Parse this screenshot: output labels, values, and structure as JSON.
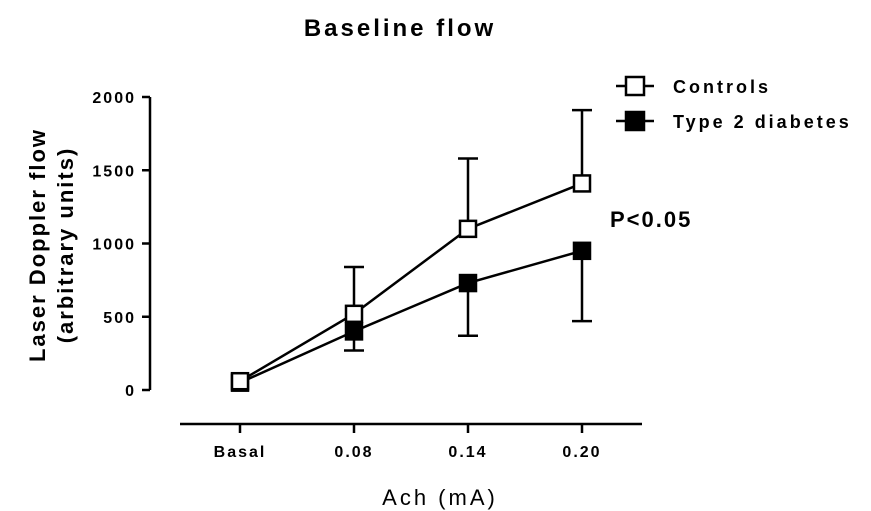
{
  "chart_data": {
    "type": "line",
    "title": "Baseline flow",
    "xlabel": "Ach (mA)",
    "ylabel_line1": "Laser Doppler flow",
    "ylabel_line2": "(arbitrary units)",
    "categories": [
      "Basal",
      "0.08",
      "0.14",
      "0.20"
    ],
    "ylim": [
      0,
      2000
    ],
    "yticks": [
      0,
      500,
      1000,
      1500,
      2000
    ],
    "ytick_labels": [
      "0",
      "500",
      "1000",
      "1500",
      "2000"
    ],
    "grid": false,
    "legend_position": "top-right",
    "series": [
      {
        "name": "Controls",
        "marker": "open-square",
        "values": [
          60,
          520,
          1100,
          1410
        ],
        "error_up": [
          0,
          320,
          480,
          500
        ],
        "error_down": [
          0,
          0,
          0,
          0
        ]
      },
      {
        "name": "Type 2 diabetes",
        "marker": "filled-square",
        "values": [
          50,
          400,
          730,
          950
        ],
        "error_up": [
          0,
          0,
          0,
          0
        ],
        "error_down": [
          0,
          130,
          360,
          480
        ]
      }
    ],
    "annotation": "P<0.05"
  }
}
